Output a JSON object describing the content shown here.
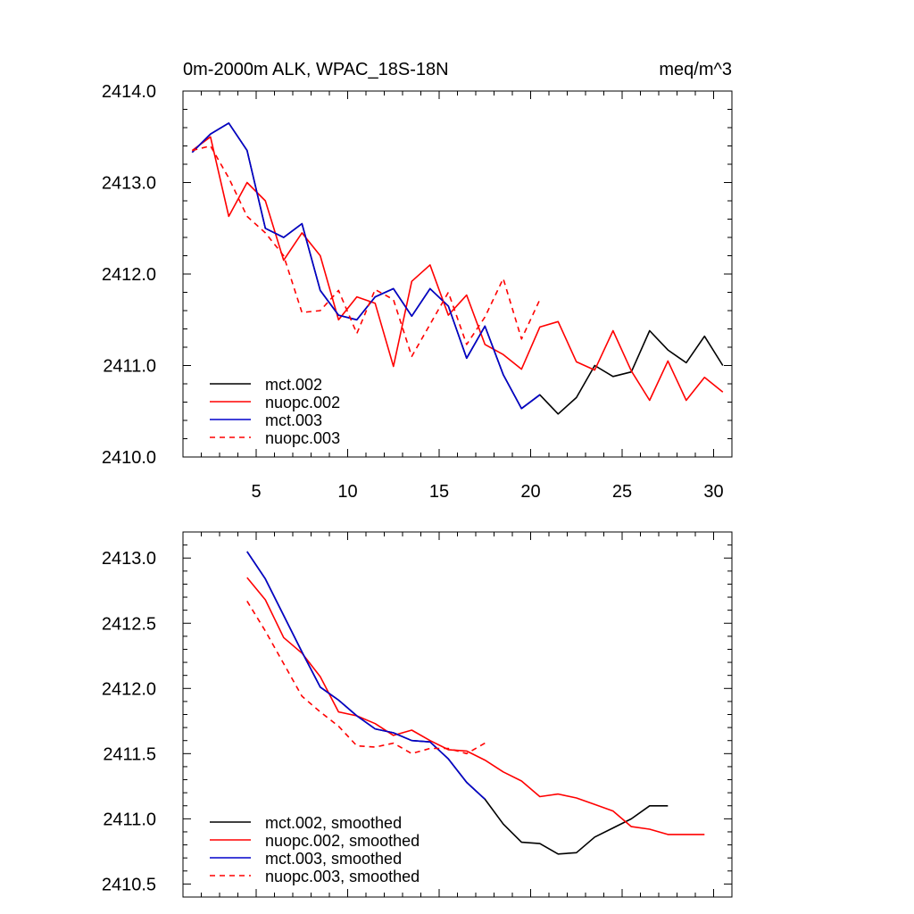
{
  "chart_data": [
    {
      "type": "line",
      "title": "0m-2000m ALK, WPAC_18S-18N",
      "units": "meq/m^3",
      "xlabel": "",
      "ylabel": "",
      "xlim": [
        1,
        31
      ],
      "ylim": [
        2410.0,
        2414.0
      ],
      "xticks": [
        5,
        10,
        15,
        20,
        25,
        30
      ],
      "xtick_labels": [
        "5",
        "10",
        "15",
        "20",
        "25",
        "30"
      ],
      "yticks": [
        2410.0,
        2411.0,
        2412.0,
        2413.0,
        2414.0
      ],
      "ytick_labels": [
        "2410.0",
        "2411.0",
        "2412.0",
        "2413.0",
        "2414.0"
      ],
      "legend_position": "bottom-left",
      "series": [
        {
          "name": "mct.002",
          "color": "#000000",
          "dash": "solid",
          "x": [
            1.5,
            2.5,
            3.5,
            4.5,
            5.5,
            6.5,
            7.5,
            8.5,
            9.5,
            10.5,
            11.5,
            12.5,
            13.5,
            14.5,
            15.5,
            16.5,
            17.5,
            18.5,
            19.5,
            20.5,
            21.5,
            22.5,
            23.5,
            24.5,
            25.5,
            26.5,
            27.5,
            28.5,
            29.5,
            30.5
          ],
          "values": [
            2413.33,
            2413.53,
            2413.65,
            2413.35,
            2412.5,
            2412.4,
            2412.55,
            2411.82,
            2411.55,
            2411.5,
            2411.75,
            2411.84,
            2411.54,
            2411.84,
            2411.65,
            2411.08,
            2411.43,
            2410.9,
            2410.53,
            2410.68,
            2410.47,
            2410.65,
            2411.0,
            2410.88,
            2410.93,
            2411.38,
            2411.17,
            2411.03,
            2411.32,
            2411.0
          ]
        },
        {
          "name": "nuopc.002",
          "color": "#ff0000",
          "dash": "solid",
          "x": [
            1.5,
            2.5,
            3.5,
            4.5,
            5.5,
            6.5,
            7.5,
            8.5,
            9.5,
            10.5,
            11.5,
            12.5,
            13.5,
            14.5,
            15.5,
            16.5,
            17.5,
            18.5,
            19.5,
            20.5,
            21.5,
            22.5,
            23.5,
            24.5,
            25.5,
            26.5,
            27.5,
            28.5,
            29.5,
            30.5
          ],
          "values": [
            2413.35,
            2413.5,
            2412.63,
            2413.0,
            2412.8,
            2412.15,
            2412.45,
            2412.2,
            2411.5,
            2411.75,
            2411.68,
            2410.99,
            2411.92,
            2412.1,
            2411.55,
            2411.77,
            2411.23,
            2411.12,
            2410.96,
            2411.42,
            2411.48,
            2411.04,
            2410.95,
            2411.38,
            2410.94,
            2410.62,
            2411.05,
            2410.62,
            2410.87,
            2410.71
          ]
        },
        {
          "name": "mct.003",
          "color": "#0000cc",
          "dash": "solid",
          "x": [
            1.5,
            2.5,
            3.5,
            4.5,
            5.5,
            6.5,
            7.5,
            8.5,
            9.5,
            10.5,
            11.5,
            12.5,
            13.5,
            14.5,
            15.5,
            16.5,
            17.5,
            18.5,
            19.5,
            20.5
          ],
          "values": [
            2413.33,
            2413.53,
            2413.65,
            2413.35,
            2412.5,
            2412.4,
            2412.55,
            2411.82,
            2411.55,
            2411.5,
            2411.75,
            2411.84,
            2411.54,
            2411.84,
            2411.65,
            2411.08,
            2411.43,
            2410.9,
            2410.53,
            2410.68
          ]
        },
        {
          "name": "nuopc.003",
          "color": "#ff0000",
          "dash": "dashed",
          "x": [
            1.5,
            2.5,
            3.5,
            4.5,
            5.5,
            6.5,
            7.5,
            8.5,
            9.5,
            10.5,
            11.5,
            12.5,
            13.5,
            14.5,
            15.5,
            16.5,
            17.5,
            18.5,
            19.5,
            20.5
          ],
          "values": [
            2413.35,
            2413.4,
            2413.05,
            2412.63,
            2412.45,
            2412.2,
            2411.58,
            2411.6,
            2411.82,
            2411.35,
            2411.83,
            2411.72,
            2411.1,
            2411.45,
            2411.8,
            2411.23,
            2411.53,
            2411.95,
            2411.29,
            2411.72
          ]
        }
      ]
    },
    {
      "type": "line",
      "title": "",
      "xlabel": "",
      "ylabel": "",
      "xlim": [
        1,
        31
      ],
      "ylim": [
        2410.4,
        2413.2
      ],
      "xticks": [
        5,
        10,
        15,
        20,
        25,
        30
      ],
      "xtick_labels": [],
      "yticks": [
        2410.5,
        2411.0,
        2411.5,
        2412.0,
        2412.5,
        2413.0
      ],
      "ytick_labels": [
        "2410.5",
        "2411.0",
        "2411.5",
        "2412.0",
        "2412.5",
        "2413.0"
      ],
      "legend_position": "bottom-left",
      "series": [
        {
          "name": "mct.002, smoothed",
          "color": "#000000",
          "dash": "solid",
          "x": [
            4.5,
            5.5,
            6.5,
            7.5,
            8.5,
            9.5,
            10.5,
            11.5,
            12.5,
            13.5,
            14.5,
            15.5,
            16.5,
            17.5,
            18.5,
            19.5,
            20.5,
            21.5,
            22.5,
            23.5,
            24.5,
            25.5,
            26.5,
            27.5
          ],
          "values": [
            2413.05,
            2412.84,
            2412.56,
            2412.28,
            2412.01,
            2411.91,
            2411.79,
            2411.69,
            2411.66,
            2411.6,
            2411.59,
            2411.46,
            2411.28,
            2411.15,
            2410.96,
            2410.82,
            2410.81,
            2410.73,
            2410.74,
            2410.86,
            2410.93,
            2411.0,
            2411.1,
            2411.1
          ]
        },
        {
          "name": "nuopc.002, smoothed",
          "color": "#ff0000",
          "dash": "solid",
          "x": [
            4.5,
            5.5,
            6.5,
            7.5,
            8.5,
            9.5,
            10.5,
            11.5,
            12.5,
            13.5,
            14.5,
            15.5,
            16.5,
            17.5,
            18.5,
            19.5,
            20.5,
            21.5,
            22.5,
            23.5,
            24.5,
            25.5,
            26.5,
            27.5,
            28.5,
            29.5
          ],
          "values": [
            2412.85,
            2412.68,
            2412.39,
            2412.27,
            2412.09,
            2411.82,
            2411.79,
            2411.73,
            2411.64,
            2411.68,
            2411.6,
            2411.53,
            2411.52,
            2411.45,
            2411.36,
            2411.29,
            2411.17,
            2411.19,
            2411.16,
            2411.11,
            2411.06,
            2410.94,
            2410.92,
            2410.88,
            2410.88,
            2410.88
          ]
        },
        {
          "name": "mct.003, smoothed",
          "color": "#0000cc",
          "dash": "solid",
          "x": [
            4.5,
            5.5,
            6.5,
            7.5,
            8.5,
            9.5,
            10.5,
            11.5,
            12.5,
            13.5,
            14.5,
            15.5,
            16.5,
            17.5
          ],
          "values": [
            2413.05,
            2412.84,
            2412.56,
            2412.28,
            2412.01,
            2411.91,
            2411.79,
            2411.69,
            2411.66,
            2411.6,
            2411.59,
            2411.46,
            2411.28,
            2411.15
          ]
        },
        {
          "name": "nuopc.003, smoothed",
          "color": "#ff0000",
          "dash": "dashed",
          "x": [
            4.5,
            5.5,
            6.5,
            7.5,
            8.5,
            9.5,
            10.5,
            11.5,
            12.5,
            13.5,
            14.5,
            15.5,
            16.5,
            17.5
          ],
          "values": [
            2412.67,
            2412.44,
            2412.19,
            2411.94,
            2411.82,
            2411.71,
            2411.56,
            2411.55,
            2411.58,
            2411.5,
            2411.54,
            2411.54,
            2411.5,
            2411.58
          ]
        }
      ]
    }
  ]
}
